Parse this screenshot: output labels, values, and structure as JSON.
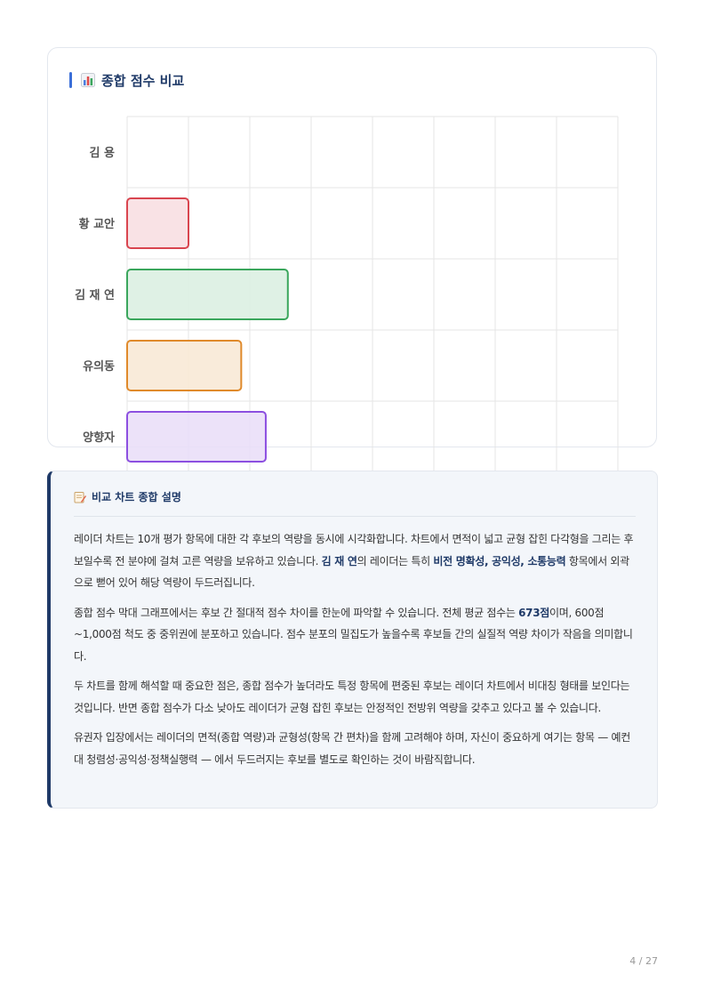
{
  "chart_section": {
    "title": "종합 점수 비교",
    "icon": "bar-chart-icon"
  },
  "chart_data": {
    "type": "bar",
    "orientation": "horizontal",
    "categories": [
      "김 용",
      "황 교안",
      "김 재 연",
      "유의동",
      "양향자"
    ],
    "values": [
      null,
      650,
      731,
      693,
      713
    ],
    "xlim": [
      600,
      1000
    ],
    "x_ticks": [
      "600",
      "650",
      "700",
      "750",
      "800",
      "850",
      "900",
      "950",
      "1,000"
    ],
    "grid": true,
    "colors": {
      "황 교안": {
        "fill": "#f8dde1",
        "stroke": "#d9454f"
      },
      "김 재 연": {
        "fill": "#d9efe0",
        "stroke": "#3aa65c"
      },
      "유의동": {
        "fill": "#f8e8d4",
        "stroke": "#e08a2b"
      },
      "양향자": {
        "fill": "#e9ddf8",
        "stroke": "#8c4fe0"
      }
    }
  },
  "explanation": {
    "icon": "memo-icon",
    "title": "비교 차트 종합 설명",
    "p1": {
      "a": "레이더 차트는 10개 평가 항목에 대한 각 후보의 역량을 동시에 시각화합니다. 차트에서 면적이 넓고 균형 잡힌 다각형을 그리는 후보일수록 전 분야에 걸쳐 고른 역량을 보유하고 있습니다. ",
      "b": "김 재 연",
      "c": "의 레이더는 특히 ",
      "d": "비전 명확성, 공익성, 소통능력",
      "e": " 항목에서 외곽으로 뻗어 있어 해당 역량이 두드러집니다."
    },
    "p2": {
      "a": "종합 점수 막대 그래프에서는 후보 간 절대적 점수 차이를 한눈에 파악할 수 있습니다. 전체 평균 점수는 ",
      "b": "673점",
      "c": "이며, 600점~1,000점 척도 중 중위권에 분포하고 있습니다. 점수 분포의 밀집도가 높을수록 후보들 간의 실질적 역량 차이가 작음을 의미합니다."
    },
    "p3": "두 차트를 함께 해석할 때 중요한 점은, 종합 점수가 높더라도 특정 항목에 편중된 후보는 레이더 차트에서 비대칭 형태를 보인다는 것입니다. 반면 종합 점수가 다소 낮아도 레이더가 균형 잡힌 후보는 안정적인 전방위 역량을 갖추고 있다고 볼 수 있습니다.",
    "p4": "유권자 입장에서는 레이더의 면적(종합 역량)과 균형성(항목 간 편차)을 함께 고려해야 하며, 자신이 중요하게 여기는 항목 — 예컨대 청렴성·공익성·정책실행력 — 에서 두드러지는 후보를 별도로 확인하는 것이 바람직합니다."
  },
  "page": {
    "number": "4 / 27"
  }
}
